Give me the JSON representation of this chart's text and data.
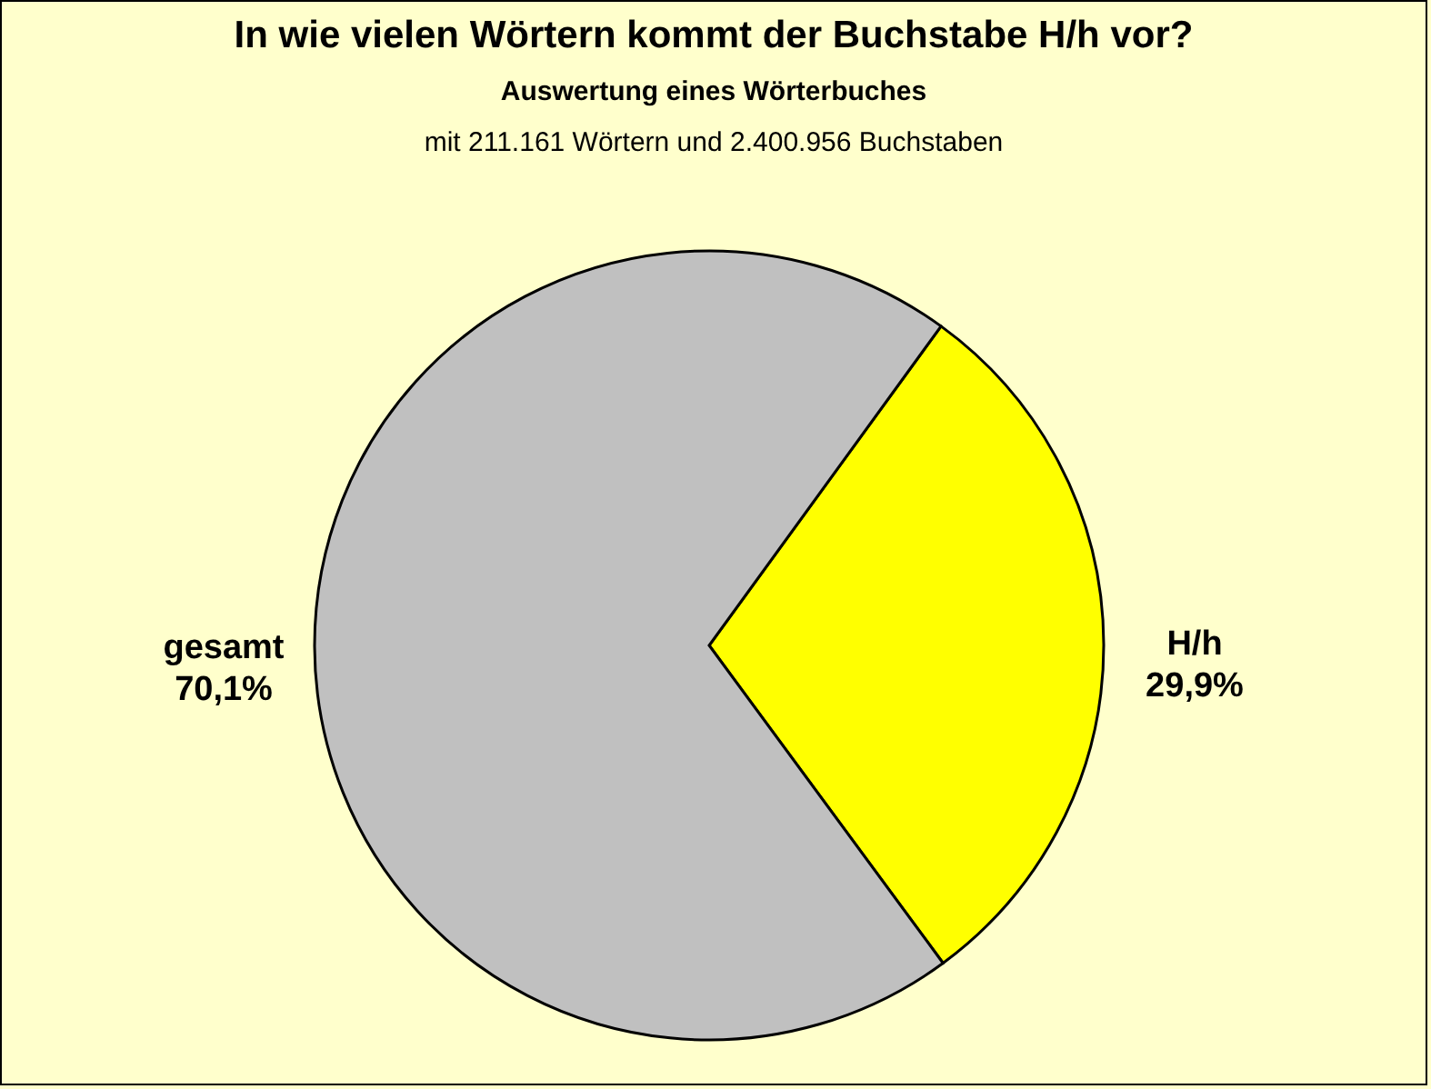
{
  "chart_data": {
    "type": "pie",
    "title": "In wie vielen Wörtern kommt der Buchstabe H/h vor?",
    "subtitle": "Auswertung eines Wörterbuches",
    "annotations": [
      "mit 211.161 Wörtern und 2.400.956 Buchstaben"
    ],
    "categories": [
      "H/h",
      "gesamt"
    ],
    "values": [
      29.9,
      70.1
    ],
    "colors": [
      "#ffff00",
      "#c0c0c0"
    ],
    "value_labels": [
      "29,9%",
      "70,1%"
    ]
  }
}
